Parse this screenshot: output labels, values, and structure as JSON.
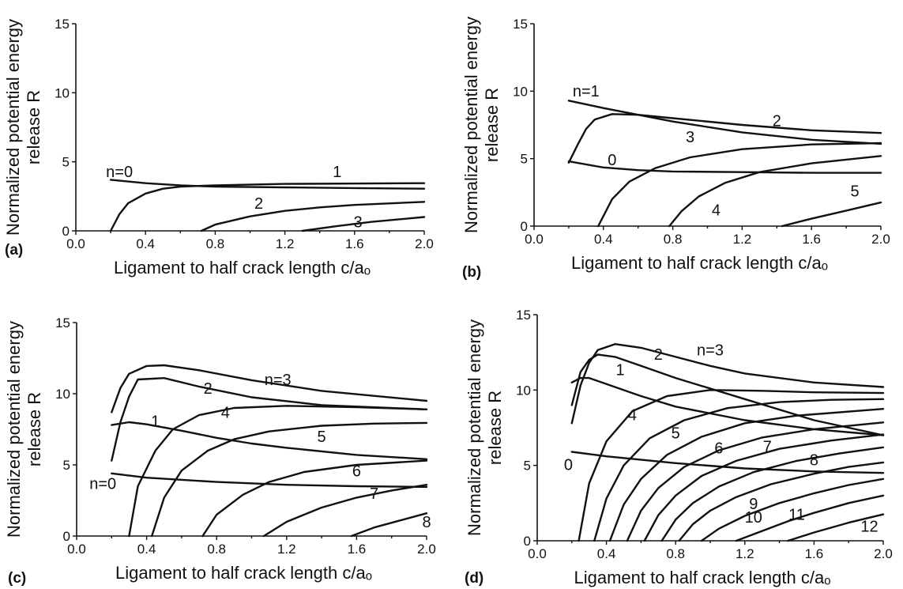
{
  "chart_data": [
    {
      "panel": "(a)",
      "type": "line",
      "xlabel": "Ligament to half crack length c/aₒ",
      "ylabel": [
        "Normalized potential energy",
        "release R"
      ],
      "xlim": [
        0.0,
        2.0
      ],
      "ylim": [
        0,
        15
      ],
      "xticks": [
        "0.0",
        "0.4",
        "0.8",
        "1.2",
        "1.6",
        "2.0"
      ],
      "yticks": [
        "0",
        "5",
        "10",
        "15"
      ],
      "series": [
        {
          "name": "n=0",
          "x": [
            0.2,
            0.4,
            0.6,
            0.8,
            1.2,
            1.6,
            2.0
          ],
          "y": [
            3.7,
            3.45,
            3.3,
            3.2,
            3.15,
            3.1,
            3.05
          ]
        },
        {
          "name": "1",
          "x": [
            0.2,
            0.25,
            0.3,
            0.4,
            0.5,
            0.6,
            0.8,
            1.2,
            2.0
          ],
          "y": [
            0.0,
            1.2,
            2.0,
            2.7,
            3.05,
            3.2,
            3.3,
            3.4,
            3.45
          ]
        },
        {
          "name": "2",
          "x": [
            0.72,
            0.8,
            1.0,
            1.2,
            1.4,
            1.6,
            2.0
          ],
          "y": [
            0.0,
            0.45,
            1.05,
            1.45,
            1.7,
            1.88,
            2.1
          ]
        },
        {
          "name": "3",
          "x": [
            1.3,
            1.5,
            1.7,
            2.0
          ],
          "y": [
            0.0,
            0.35,
            0.65,
            1.0
          ]
        }
      ]
    },
    {
      "panel": "(b)",
      "type": "line",
      "xlabel": "Ligament to half crack length c/aₒ",
      "ylabel": [
        "Normalized potential energy",
        "release R"
      ],
      "xlim": [
        0.0,
        2.0
      ],
      "ylim": [
        0,
        15
      ],
      "xticks": [
        "0.0",
        "0.4",
        "0.8",
        "1.2",
        "1.6",
        "2.0"
      ],
      "yticks": [
        "0",
        "5",
        "10",
        "15"
      ],
      "series": [
        {
          "name": "0",
          "x": [
            0.2,
            0.4,
            0.6,
            0.8,
            1.2,
            1.6,
            2.0
          ],
          "y": [
            4.8,
            4.35,
            4.15,
            4.05,
            4.0,
            3.95,
            3.95
          ]
        },
        {
          "name": "n=1",
          "x": [
            0.2,
            0.4,
            0.6,
            0.8,
            1.2,
            1.6,
            2.0
          ],
          "y": [
            9.3,
            8.75,
            8.25,
            7.75,
            6.95,
            6.4,
            6.1
          ]
        },
        {
          "name": "2",
          "x": [
            0.2,
            0.25,
            0.3,
            0.35,
            0.45,
            0.6,
            0.8,
            1.2,
            1.6,
            2.0
          ],
          "y": [
            4.7,
            6.0,
            7.2,
            7.9,
            8.3,
            8.25,
            8.0,
            7.5,
            7.1,
            6.9
          ]
        },
        {
          "name": "3",
          "x": [
            0.37,
            0.45,
            0.55,
            0.7,
            0.9,
            1.2,
            1.6,
            2.0
          ],
          "y": [
            0.0,
            2.0,
            3.3,
            4.3,
            5.1,
            5.7,
            6.05,
            6.15
          ]
        },
        {
          "name": "4",
          "x": [
            0.78,
            0.85,
            0.95,
            1.1,
            1.3,
            1.6,
            2.0
          ],
          "y": [
            0.0,
            1.1,
            2.2,
            3.2,
            4.0,
            4.65,
            5.2
          ]
        },
        {
          "name": "5",
          "x": [
            1.43,
            1.6,
            1.8,
            2.0
          ],
          "y": [
            0.0,
            0.55,
            1.15,
            1.75
          ]
        }
      ]
    },
    {
      "panel": "(c)",
      "type": "line",
      "xlabel": "Ligament to half crack length c/aₒ",
      "ylabel": [
        "Normalized potential energy",
        "release R"
      ],
      "xlim": [
        0.0,
        2.0
      ],
      "ylim": [
        0,
        15
      ],
      "xticks": [
        "0.0",
        "0.4",
        "0.8",
        "1.2",
        "1.6",
        "2.0"
      ],
      "yticks": [
        "0",
        "5",
        "10",
        "15"
      ],
      "series": [
        {
          "name": "n=0",
          "x": [
            0.2,
            0.4,
            0.8,
            1.2,
            1.6,
            2.0
          ],
          "y": [
            4.4,
            4.1,
            3.8,
            3.6,
            3.5,
            3.45
          ]
        },
        {
          "name": "1",
          "x": [
            0.2,
            0.3,
            0.4,
            0.6,
            0.8,
            1.0,
            1.2,
            1.6,
            2.0
          ],
          "y": [
            7.8,
            8.0,
            7.85,
            7.4,
            6.9,
            6.5,
            6.2,
            5.7,
            5.4
          ]
        },
        {
          "name": "2",
          "x": [
            0.2,
            0.25,
            0.3,
            0.35,
            0.5,
            0.7,
            1.0,
            1.4,
            2.0
          ],
          "y": [
            5.3,
            8.0,
            9.8,
            11.0,
            11.1,
            10.5,
            9.75,
            9.2,
            8.9
          ]
        },
        {
          "name": "n=3",
          "x": [
            0.2,
            0.25,
            0.3,
            0.4,
            0.5,
            0.7,
            1.0,
            1.4,
            2.0
          ],
          "y": [
            8.7,
            10.4,
            11.4,
            11.95,
            12.0,
            11.65,
            10.95,
            10.2,
            9.5
          ]
        },
        {
          "name": "4",
          "x": [
            0.3,
            0.35,
            0.45,
            0.55,
            0.7,
            0.9,
            1.2,
            1.6,
            2.0
          ],
          "y": [
            0.0,
            3.5,
            6.0,
            7.5,
            8.5,
            9.0,
            9.15,
            9.05,
            8.9
          ]
        },
        {
          "name": "5",
          "x": [
            0.43,
            0.5,
            0.6,
            0.75,
            0.9,
            1.1,
            1.4,
            1.7,
            2.0
          ],
          "y": [
            0.0,
            2.7,
            4.6,
            6.0,
            6.8,
            7.35,
            7.75,
            7.9,
            7.95
          ]
        },
        {
          "name": "6",
          "x": [
            0.72,
            0.8,
            0.95,
            1.1,
            1.3,
            1.6,
            2.0
          ],
          "y": [
            0.0,
            1.5,
            2.9,
            3.8,
            4.5,
            5.0,
            5.3
          ]
        },
        {
          "name": "7",
          "x": [
            1.07,
            1.2,
            1.4,
            1.6,
            1.8,
            2.0
          ],
          "y": [
            0.0,
            1.0,
            2.0,
            2.7,
            3.2,
            3.6
          ]
        },
        {
          "name": "8",
          "x": [
            1.57,
            1.7,
            1.85,
            2.0
          ],
          "y": [
            0.0,
            0.6,
            1.1,
            1.6
          ]
        }
      ]
    },
    {
      "panel": "(d)",
      "type": "line",
      "xlabel": "Ligament to half crack length c/aₒ",
      "ylabel": [
        "Normalized potential energy",
        "release R"
      ],
      "xlim": [
        0.0,
        2.0
      ],
      "ylim": [
        0,
        15
      ],
      "xticks": [
        "0.0",
        "0.4",
        "0.8",
        "1.2",
        "1.6",
        "2.0"
      ],
      "yticks": [
        "0",
        "5",
        "10",
        "15"
      ],
      "series": [
        {
          "name": "0",
          "x": [
            0.2,
            0.4,
            0.8,
            1.2,
            1.6,
            2.0
          ],
          "y": [
            5.9,
            5.6,
            5.15,
            4.8,
            4.6,
            4.5
          ]
        },
        {
          "name": "1",
          "x": [
            0.2,
            0.25,
            0.3,
            0.4,
            0.6,
            0.8,
            1.2,
            1.6,
            2.0
          ],
          "y": [
            10.5,
            10.8,
            10.8,
            10.4,
            9.6,
            8.9,
            8.0,
            7.4,
            7.0
          ]
        },
        {
          "name": "2",
          "x": [
            0.2,
            0.25,
            0.3,
            0.35,
            0.45,
            0.6,
            0.8,
            1.2,
            1.6,
            2.0
          ],
          "y": [
            9.0,
            11.2,
            12.0,
            12.35,
            12.2,
            11.6,
            10.8,
            9.4,
            8.0,
            7.0
          ]
        },
        {
          "name": "n=3",
          "x": [
            0.2,
            0.25,
            0.3,
            0.35,
            0.45,
            0.6,
            0.8,
            1.0,
            1.2,
            1.6,
            2.0
          ],
          "y": [
            7.8,
            10.3,
            11.8,
            12.65,
            13.05,
            12.8,
            12.2,
            11.6,
            11.1,
            10.5,
            10.2
          ]
        },
        {
          "name": "4",
          "x": [
            0.24,
            0.3,
            0.4,
            0.55,
            0.75,
            1.0,
            1.3,
            1.6,
            2.0
          ],
          "y": [
            0.0,
            3.8,
            6.6,
            8.6,
            9.6,
            10.0,
            9.95,
            9.85,
            9.8
          ]
        },
        {
          "name": "5",
          "x": [
            0.33,
            0.4,
            0.5,
            0.65,
            0.85,
            1.1,
            1.4,
            1.7,
            2.0
          ],
          "y": [
            0.0,
            2.8,
            5.0,
            6.8,
            8.0,
            8.8,
            9.2,
            9.35,
            9.4
          ]
        },
        {
          "name": "6",
          "x": [
            0.42,
            0.5,
            0.6,
            0.75,
            0.95,
            1.2,
            1.5,
            2.0
          ],
          "y": [
            0.0,
            2.4,
            4.1,
            5.7,
            6.9,
            7.8,
            8.3,
            8.75
          ]
        },
        {
          "name": "7",
          "x": [
            0.52,
            0.6,
            0.7,
            0.85,
            1.05,
            1.3,
            1.6,
            2.0
          ],
          "y": [
            0.0,
            2.0,
            3.5,
            4.9,
            6.0,
            6.85,
            7.4,
            7.85
          ]
        },
        {
          "name": "8",
          "x": [
            0.62,
            0.7,
            0.8,
            0.95,
            1.15,
            1.4,
            1.7,
            2.0
          ],
          "y": [
            0.0,
            1.7,
            3.0,
            4.3,
            5.3,
            6.1,
            6.65,
            7.05
          ]
        },
        {
          "name": "9",
          "x": [
            0.72,
            0.8,
            0.9,
            1.05,
            1.25,
            1.5,
            1.75,
            2.0
          ],
          "y": [
            0.0,
            1.4,
            2.5,
            3.6,
            4.55,
            5.3,
            5.8,
            6.2
          ]
        },
        {
          "name": "10",
          "x": [
            0.82,
            0.9,
            1.0,
            1.15,
            1.35,
            1.6,
            1.8,
            2.0
          ],
          "y": [
            0.0,
            1.1,
            2.0,
            2.9,
            3.75,
            4.45,
            4.9,
            5.2
          ]
        },
        {
          "name": "11",
          "x": [
            0.95,
            1.05,
            1.2,
            1.4,
            1.6,
            1.8,
            2.0
          ],
          "y": [
            0.0,
            0.8,
            1.65,
            2.5,
            3.15,
            3.7,
            4.1
          ]
        },
        {
          "name": "12",
          "x": [
            1.15,
            1.3,
            1.45,
            1.6,
            1.8,
            2.0
          ],
          "y": [
            0.0,
            0.65,
            1.3,
            1.85,
            2.5,
            3.0
          ]
        },
        {
          "name": "",
          "x": [
            1.45,
            1.6,
            1.8,
            2.0
          ],
          "y": [
            0.0,
            0.55,
            1.2,
            1.75
          ]
        }
      ]
    }
  ]
}
